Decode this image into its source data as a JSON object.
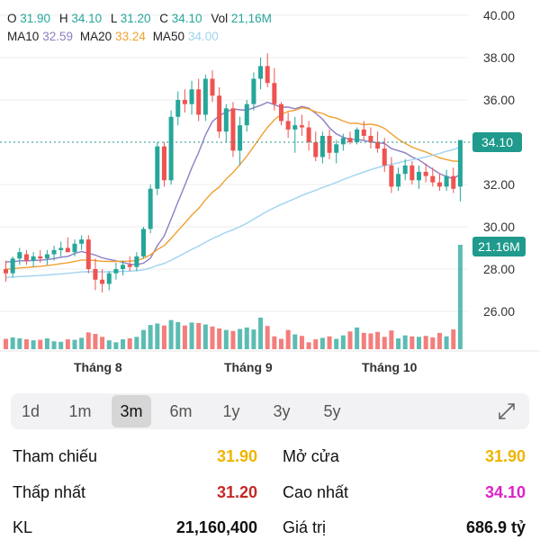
{
  "ohlc": {
    "o_label": "O",
    "o": "31.90",
    "h_label": "H",
    "h": "34.10",
    "l_label": "L",
    "l": "31.20",
    "c_label": "C",
    "c": "34.10",
    "vol_label": "Vol",
    "vol": "21,16M"
  },
  "ma": {
    "ma10_label": "MA10",
    "ma10": "32.59",
    "ma20_label": "MA20",
    "ma20": "33.24",
    "ma50_label": "MA50",
    "ma50": "34.00"
  },
  "colors": {
    "up": "#26a69a",
    "down": "#ef5350",
    "ma10": "#8e7cc3",
    "ma20": "#f0a030",
    "ma50": "#9fd3f0",
    "ref": "#f0b400",
    "low": "#c62828",
    "high": "#e020c8"
  },
  "y_ticks": [
    "40.00",
    "38.00",
    "36.00",
    "34.00",
    "32.00",
    "30.00",
    "28.00",
    "26.00"
  ],
  "current_price": "34.10",
  "current_volume": "21.16M",
  "x_labels": [
    "Tháng 8",
    "Tháng 9",
    "Tháng 10"
  ],
  "tabs": [
    {
      "label": "1d",
      "active": false
    },
    {
      "label": "1m",
      "active": false
    },
    {
      "label": "3m",
      "active": true
    },
    {
      "label": "6m",
      "active": false
    },
    {
      "label": "1y",
      "active": false
    },
    {
      "label": "3y",
      "active": false
    },
    {
      "label": "5y",
      "active": false
    }
  ],
  "expand_icon": "expand-icon",
  "stats": {
    "ref_label": "Tham chiếu",
    "ref_value": "31.90",
    "open_label": "Mở cửa",
    "open_value": "31.90",
    "low_label": "Thấp nhất",
    "low_value": "31.20",
    "high_label": "Cao nhất",
    "high_value": "34.10",
    "vol_label": "KL",
    "vol_value": "21,160,400",
    "value_label": "Giá trị",
    "value_value": "686.9 tỷ"
  },
  "chart_data": {
    "type": "candlestick",
    "price_range": [
      25,
      40.5
    ],
    "candles": [
      [
        28.0,
        28.4,
        27.4,
        27.8
      ],
      [
        27.8,
        28.6,
        27.6,
        28.5
      ],
      [
        28.5,
        29.0,
        28.2,
        28.8
      ],
      [
        28.7,
        28.9,
        28.2,
        28.4
      ],
      [
        28.4,
        28.8,
        28.1,
        28.6
      ],
      [
        28.6,
        28.9,
        28.3,
        28.5
      ],
      [
        28.5,
        28.9,
        28.2,
        28.7
      ],
      [
        28.7,
        29.1,
        28.4,
        28.9
      ],
      [
        28.9,
        29.3,
        28.6,
        29.0
      ],
      [
        29.0,
        29.5,
        28.8,
        28.8
      ],
      [
        28.8,
        29.4,
        28.6,
        29.2
      ],
      [
        29.2,
        29.6,
        28.9,
        29.4
      ],
      [
        29.4,
        29.6,
        27.8,
        28.0
      ],
      [
        28.0,
        28.5,
        27.0,
        27.5
      ],
      [
        27.5,
        28.0,
        26.9,
        27.3
      ],
      [
        27.3,
        27.9,
        27.0,
        27.8
      ],
      [
        27.8,
        28.3,
        27.5,
        28.0
      ],
      [
        28.0,
        28.4,
        27.7,
        28.2
      ],
      [
        28.2,
        28.6,
        27.9,
        28.1
      ],
      [
        28.1,
        28.8,
        27.9,
        28.6
      ],
      [
        28.6,
        30.0,
        28.5,
        29.9
      ],
      [
        29.9,
        32.0,
        29.7,
        31.8
      ],
      [
        31.8,
        34.0,
        31.5,
        33.8
      ],
      [
        33.8,
        34.0,
        31.9,
        32.2
      ],
      [
        32.2,
        35.5,
        32.0,
        35.2
      ],
      [
        35.2,
        36.4,
        34.8,
        36.0
      ],
      [
        36.0,
        36.5,
        35.4,
        35.8
      ],
      [
        35.8,
        36.9,
        35.3,
        36.5
      ],
      [
        36.5,
        37.0,
        35.0,
        35.3
      ],
      [
        35.3,
        37.2,
        35.0,
        37.0
      ],
      [
        37.0,
        37.4,
        35.9,
        36.2
      ],
      [
        36.2,
        36.6,
        34.2,
        34.5
      ],
      [
        34.5,
        35.8,
        34.0,
        35.6
      ],
      [
        35.6,
        35.9,
        33.3,
        33.6
      ],
      [
        33.6,
        35.2,
        32.9,
        34.8
      ],
      [
        34.8,
        36.0,
        34.5,
        35.8
      ],
      [
        35.8,
        37.3,
        35.5,
        37.0
      ],
      [
        37.0,
        38.0,
        36.5,
        37.6
      ],
      [
        37.6,
        38.2,
        36.6,
        36.8
      ],
      [
        36.8,
        37.5,
        35.5,
        35.8
      ],
      [
        35.8,
        35.9,
        34.8,
        35.0
      ],
      [
        35.0,
        35.4,
        34.2,
        34.6
      ],
      [
        34.6,
        35.2,
        33.5,
        34.8
      ],
      [
        34.8,
        35.3,
        34.3,
        34.7
      ],
      [
        34.7,
        35.0,
        33.6,
        34.0
      ],
      [
        34.0,
        34.5,
        33.1,
        33.3
      ],
      [
        33.3,
        34.5,
        33.0,
        34.3
      ],
      [
        34.3,
        34.6,
        33.2,
        33.5
      ],
      [
        33.5,
        34.1,
        33.0,
        33.9
      ],
      [
        33.9,
        34.4,
        33.6,
        34.2
      ],
      [
        34.2,
        34.5,
        33.9,
        34.0
      ],
      [
        34.0,
        34.7,
        33.9,
        34.6
      ],
      [
        34.6,
        35.0,
        34.1,
        34.3
      ],
      [
        34.3,
        34.7,
        33.7,
        34.0
      ],
      [
        34.0,
        34.5,
        33.5,
        33.7
      ],
      [
        33.7,
        34.2,
        32.6,
        32.9
      ],
      [
        32.9,
        33.3,
        31.6,
        31.9
      ],
      [
        31.9,
        32.8,
        31.7,
        32.5
      ],
      [
        32.5,
        33.2,
        32.2,
        32.9
      ],
      [
        32.9,
        33.1,
        32.0,
        32.2
      ],
      [
        32.2,
        32.9,
        31.8,
        32.6
      ],
      [
        32.6,
        33.0,
        32.1,
        32.4
      ],
      [
        32.4,
        32.8,
        31.9,
        32.1
      ],
      [
        32.1,
        32.5,
        31.7,
        31.9
      ],
      [
        31.9,
        32.7,
        31.7,
        32.4
      ],
      [
        32.4,
        32.8,
        31.6,
        31.8
      ],
      [
        31.9,
        34.1,
        31.2,
        34.1
      ]
    ],
    "volumes": [
      2.1,
      2.4,
      2.2,
      2.0,
      1.8,
      1.9,
      2.2,
      1.6,
      1.5,
      2.0,
      1.9,
      2.3,
      3.4,
      3.1,
      2.5,
      1.8,
      1.4,
      2.0,
      2.2,
      2.5,
      3.9,
      4.9,
      5.2,
      4.8,
      5.9,
      5.5,
      4.8,
      5.4,
      5.3,
      5.0,
      4.6,
      4.2,
      3.9,
      3.7,
      4.1,
      4.4,
      4.0,
      6.4,
      4.7,
      2.6,
      2.1,
      3.9,
      3.0,
      2.7,
      1.4,
      2.0,
      2.3,
      2.6,
      2.1,
      2.8,
      3.6,
      4.4,
      3.3,
      3.2,
      3.5,
      2.5,
      3.8,
      2.2,
      2.8,
      2.6,
      2.5,
      2.7,
      2.4,
      3.3,
      2.6,
      4.0,
      21.16
    ],
    "volume_max": 21.16
  }
}
